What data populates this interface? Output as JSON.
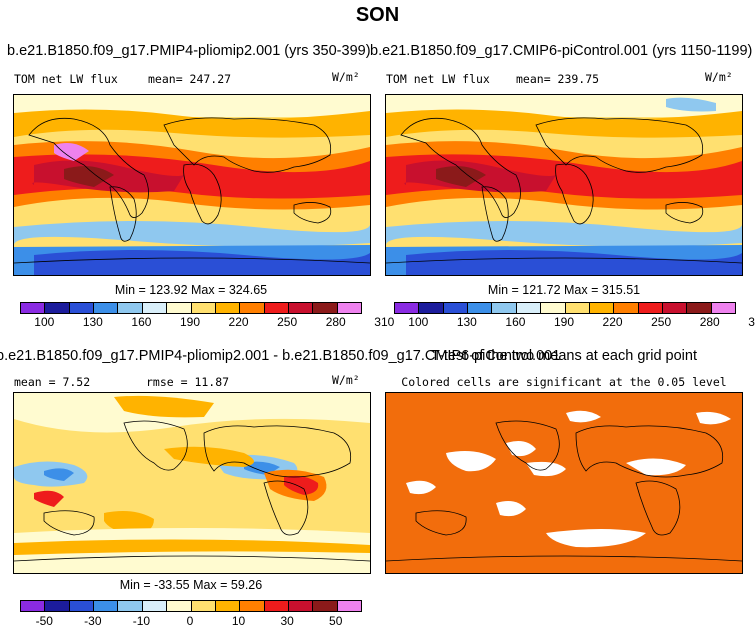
{
  "page": {
    "title": "SON"
  },
  "panels": {
    "top_left": {
      "title": "b.e21.B1850.f09_g17.PMIP4-pliomip2.001 (yrs 350-399)",
      "var_label": "TOM net LW flux",
      "mean_label": "mean= 247.27",
      "units": "W/m²",
      "stats": "Min = 123.92 Max = 324.65"
    },
    "top_right": {
      "title": "b.e21.B1850.f09_g17.CMIP6-piControl.001 (yrs 1150-1199)",
      "var_label": "TOM net LW flux",
      "mean_label": "mean= 239.75",
      "units": "W/m²",
      "stats": "Min = 121.72 Max = 315.51"
    },
    "bottom_left": {
      "title": "b.e21.B1850.f09_g17.PMIP4-pliomip2.001 - b.e21.B1850.f09_g17.CMIP6-piControl.001",
      "mean_label": "mean =   7.52",
      "rmse_label": "rmse =  11.87",
      "units": "W/m²",
      "stats": "Min = -33.55 Max =  59.26"
    },
    "bottom_right": {
      "title": "T-test of the two means at each grid point",
      "subtitle": "Colored cells are significant at the 0.05 level"
    }
  },
  "colorbars": {
    "abs": {
      "ticks": [
        "100",
        "130",
        "160",
        "190",
        "220",
        "250",
        "280",
        "310"
      ],
      "colors": [
        "#8a2be2",
        "#1c1c9c",
        "#2a4fd6",
        "#3c8fe8",
        "#8fc8ef",
        "#d9effa",
        "#fffbd0",
        "#ffe070",
        "#ffb300",
        "#ff7f00",
        "#ee1c1c",
        "#c8102e",
        "#8b1a1a",
        "#ee82ee"
      ]
    },
    "diff": {
      "ticks": [
        "-50",
        "-30",
        "-10",
        "0",
        "10",
        "30",
        "50"
      ],
      "colors": [
        "#8a2be2",
        "#1c1c9c",
        "#2a4fd6",
        "#3c8fe8",
        "#8fc8ef",
        "#d9effa",
        "#fffbd0",
        "#ffe070",
        "#ffb300",
        "#ff7f00",
        "#ee1c1c",
        "#c8102e",
        "#8b1a1a",
        "#ee82ee"
      ]
    }
  },
  "colors": {
    "significant": "#f26d0c"
  }
}
